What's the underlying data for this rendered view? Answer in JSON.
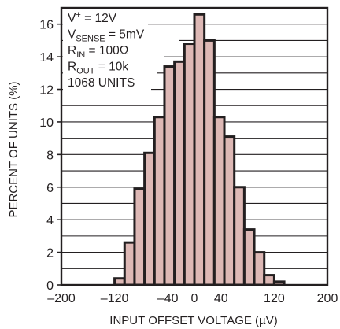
{
  "chart_data": {
    "type": "bar",
    "title": "",
    "xlabel": "INPUT OFFSET VOLTAGE (µV)",
    "ylabel": "PERCENT OF UNITS (%)",
    "xlim": [
      -200,
      200
    ],
    "ylim": [
      0,
      17
    ],
    "x_ticks": [
      "–200",
      "–120",
      "–40",
      "0",
      "40",
      "120",
      "200"
    ],
    "x_tick_values": [
      -200,
      -120,
      -40,
      0,
      40,
      120,
      200
    ],
    "y_ticks": [
      "0",
      "2",
      "4",
      "6",
      "8",
      "10",
      "12",
      "14",
      "16"
    ],
    "y_tick_values": [
      0,
      2,
      4,
      6,
      8,
      10,
      12,
      14,
      16
    ],
    "grid": true,
    "bar_color": "#ddb8b5",
    "bins": [
      {
        "x0": -120,
        "x1": -105,
        "value": 0.4
      },
      {
        "x0": -105,
        "x1": -90,
        "value": 2.6
      },
      {
        "x0": -90,
        "x1": -75,
        "value": 5.9
      },
      {
        "x0": -75,
        "x1": -60,
        "value": 8.1
      },
      {
        "x0": -60,
        "x1": -45,
        "value": 10.3
      },
      {
        "x0": -45,
        "x1": -30,
        "value": 13.4
      },
      {
        "x0": -30,
        "x1": -15,
        "value": 13.7
      },
      {
        "x0": -15,
        "x1": 0,
        "value": 14.8
      },
      {
        "x0": 0,
        "x1": 15,
        "value": 16.6
      },
      {
        "x0": 15,
        "x1": 30,
        "value": 15.0
      },
      {
        "x0": 30,
        "x1": 45,
        "value": 10.3
      },
      {
        "x0": 45,
        "x1": 60,
        "value": 9.1
      },
      {
        "x0": 60,
        "x1": 75,
        "value": 6.0
      },
      {
        "x0": 75,
        "x1": 90,
        "value": 3.4
      },
      {
        "x0": 90,
        "x1": 105,
        "value": 2.0
      },
      {
        "x0": 105,
        "x1": 120,
        "value": 0.6
      },
      {
        "x0": 120,
        "x1": 135,
        "value": 0.2
      }
    ],
    "annotations": [
      {
        "main": "V",
        "sup": "+",
        "rest": " = 12V"
      },
      {
        "main": "V",
        "sub": "SENSE",
        "rest": " = 5mV"
      },
      {
        "main": "R",
        "sub": "IN",
        "rest": " = 100Ω"
      },
      {
        "main": "R",
        "sub": "OUT",
        "rest": " = 10k"
      },
      {
        "main": "1068 UNITS"
      }
    ]
  }
}
